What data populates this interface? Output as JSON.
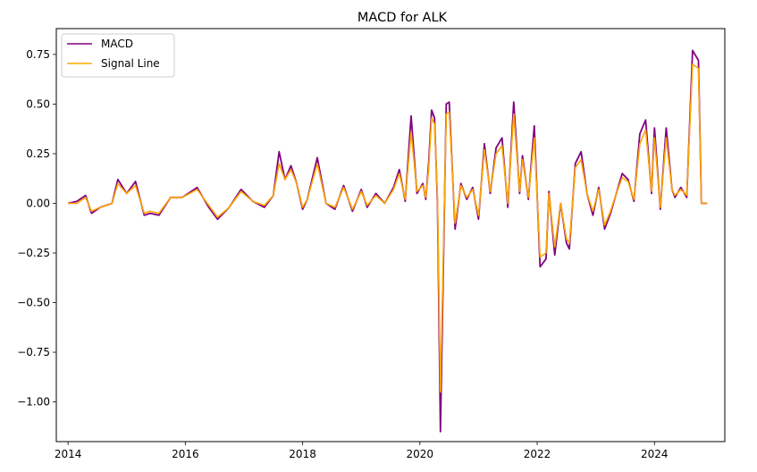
{
  "chart_data": {
    "type": "line",
    "title": "MACD for ALK",
    "xlabel": "",
    "ylabel": "",
    "xlim": [
      2013.8,
      2025.2
    ],
    "ylim": [
      -1.2,
      0.88
    ],
    "x_ticks": [
      2014,
      2016,
      2018,
      2020,
      2022,
      2024
    ],
    "x_tick_labels": [
      "2014",
      "2016",
      "2018",
      "2020",
      "2022",
      "2024"
    ],
    "y_ticks": [
      0.75,
      0.5,
      0.25,
      0.0,
      -0.25,
      -0.5,
      -0.75,
      -1.0
    ],
    "y_tick_labels": [
      "0.75",
      "0.50",
      "0.25",
      "0.00",
      "−0.25",
      "−0.50",
      "−0.75",
      "−1.00"
    ],
    "grid": false,
    "legend_position": "upper-left",
    "series": [
      {
        "name": "MACD",
        "color": "#800080",
        "x": [
          2014.0,
          2014.15,
          2014.3,
          2014.4,
          2014.55,
          2014.75,
          2014.85,
          2015.0,
          2015.15,
          2015.3,
          2015.4,
          2015.55,
          2015.75,
          2015.95,
          2016.2,
          2016.4,
          2016.55,
          2016.75,
          2016.95,
          2017.15,
          2017.35,
          2017.5,
          2017.6,
          2017.7,
          2017.8,
          2017.9,
          2018.0,
          2018.08,
          2018.25,
          2018.4,
          2018.55,
          2018.7,
          2018.85,
          2019.0,
          2019.1,
          2019.25,
          2019.4,
          2019.55,
          2019.65,
          2019.75,
          2019.85,
          2019.95,
          2020.05,
          2020.1,
          2020.15,
          2020.2,
          2020.25,
          2020.3,
          2020.35,
          2020.45,
          2020.5,
          2020.6,
          2020.7,
          2020.8,
          2020.9,
          2021.0,
          2021.1,
          2021.2,
          2021.3,
          2021.4,
          2021.5,
          2021.6,
          2021.7,
          2021.75,
          2021.85,
          2021.95,
          2022.05,
          2022.15,
          2022.2,
          2022.3,
          2022.4,
          2022.5,
          2022.55,
          2022.65,
          2022.75,
          2022.85,
          2022.95,
          2023.05,
          2023.15,
          2023.25,
          2023.35,
          2023.45,
          2023.55,
          2023.65,
          2023.75,
          2023.85,
          2023.95,
          2024.0,
          2024.1,
          2024.2,
          2024.3,
          2024.35,
          2024.45,
          2024.55,
          2024.65,
          2024.75,
          2024.8,
          2024.9
        ],
        "values": [
          0.0,
          0.01,
          0.04,
          -0.05,
          -0.02,
          0.0,
          0.12,
          0.05,
          0.11,
          -0.06,
          -0.05,
          -0.06,
          0.03,
          0.03,
          0.08,
          -0.02,
          -0.08,
          -0.02,
          0.07,
          0.01,
          -0.02,
          0.04,
          0.26,
          0.12,
          0.19,
          0.1,
          -0.03,
          0.02,
          0.23,
          0.0,
          -0.03,
          0.09,
          -0.04,
          0.07,
          -0.02,
          0.05,
          0.0,
          0.08,
          0.17,
          0.01,
          0.44,
          0.05,
          0.1,
          0.02,
          0.2,
          0.47,
          0.43,
          0.0,
          -1.15,
          0.5,
          0.51,
          -0.13,
          0.1,
          0.02,
          0.08,
          -0.08,
          0.3,
          0.05,
          0.28,
          0.33,
          -0.02,
          0.51,
          0.05,
          0.24,
          0.02,
          0.39,
          -0.32,
          -0.28,
          0.06,
          -0.26,
          0.0,
          -0.2,
          -0.23,
          0.2,
          0.26,
          0.05,
          -0.06,
          0.08,
          -0.13,
          -0.05,
          0.05,
          0.15,
          0.12,
          0.01,
          0.35,
          0.42,
          0.05,
          0.38,
          -0.03,
          0.38,
          0.07,
          0.03,
          0.08,
          0.03,
          0.77,
          0.72,
          0.0,
          0.0
        ],
        "_comment": ""
      },
      {
        "name": "Signal Line",
        "color": "#FFA500",
        "x": [
          2014.0,
          2014.15,
          2014.3,
          2014.4,
          2014.55,
          2014.75,
          2014.85,
          2015.0,
          2015.15,
          2015.3,
          2015.4,
          2015.55,
          2015.75,
          2015.95,
          2016.2,
          2016.4,
          2016.55,
          2016.75,
          2016.95,
          2017.15,
          2017.35,
          2017.5,
          2017.6,
          2017.7,
          2017.8,
          2017.9,
          2018.0,
          2018.08,
          2018.25,
          2018.4,
          2018.55,
          2018.7,
          2018.85,
          2019.0,
          2019.1,
          2019.25,
          2019.4,
          2019.55,
          2019.65,
          2019.75,
          2019.85,
          2019.95,
          2020.05,
          2020.1,
          2020.15,
          2020.2,
          2020.25,
          2020.3,
          2020.35,
          2020.45,
          2020.5,
          2020.6,
          2020.7,
          2020.8,
          2020.9,
          2021.0,
          2021.1,
          2021.2,
          2021.3,
          2021.4,
          2021.5,
          2021.6,
          2021.7,
          2021.75,
          2021.85,
          2021.95,
          2022.05,
          2022.15,
          2022.2,
          2022.3,
          2022.4,
          2022.5,
          2022.55,
          2022.65,
          2022.75,
          2022.85,
          2022.95,
          2023.05,
          2023.15,
          2023.25,
          2023.35,
          2023.45,
          2023.55,
          2023.65,
          2023.75,
          2023.85,
          2023.95,
          2024.0,
          2024.1,
          2024.2,
          2024.3,
          2024.35,
          2024.45,
          2024.55,
          2024.65,
          2024.75,
          2024.8,
          2024.9
        ],
        "values": [
          0.0,
          0.0,
          0.03,
          -0.04,
          -0.02,
          0.0,
          0.1,
          0.05,
          0.09,
          -0.05,
          -0.04,
          -0.05,
          0.03,
          0.03,
          0.07,
          -0.01,
          -0.07,
          -0.02,
          0.06,
          0.01,
          -0.01,
          0.04,
          0.2,
          0.12,
          0.17,
          0.1,
          -0.02,
          0.02,
          0.2,
          0.0,
          -0.02,
          0.08,
          -0.03,
          0.06,
          -0.01,
          0.04,
          0.0,
          0.07,
          0.15,
          0.02,
          0.36,
          0.06,
          0.09,
          0.03,
          0.17,
          0.43,
          0.4,
          0.03,
          -0.95,
          0.45,
          0.46,
          -0.1,
          0.09,
          0.03,
          0.07,
          -0.06,
          0.27,
          0.06,
          0.25,
          0.29,
          0.0,
          0.45,
          0.06,
          0.22,
          0.03,
          0.33,
          -0.27,
          -0.25,
          0.05,
          -0.22,
          0.0,
          -0.18,
          -0.2,
          0.18,
          0.22,
          0.05,
          -0.04,
          0.07,
          -0.11,
          -0.04,
          0.05,
          0.13,
          0.11,
          0.02,
          0.3,
          0.37,
          0.06,
          0.33,
          -0.02,
          0.33,
          0.07,
          0.04,
          0.07,
          0.04,
          0.7,
          0.68,
          0.0,
          0.0
        ]
      }
    ]
  }
}
